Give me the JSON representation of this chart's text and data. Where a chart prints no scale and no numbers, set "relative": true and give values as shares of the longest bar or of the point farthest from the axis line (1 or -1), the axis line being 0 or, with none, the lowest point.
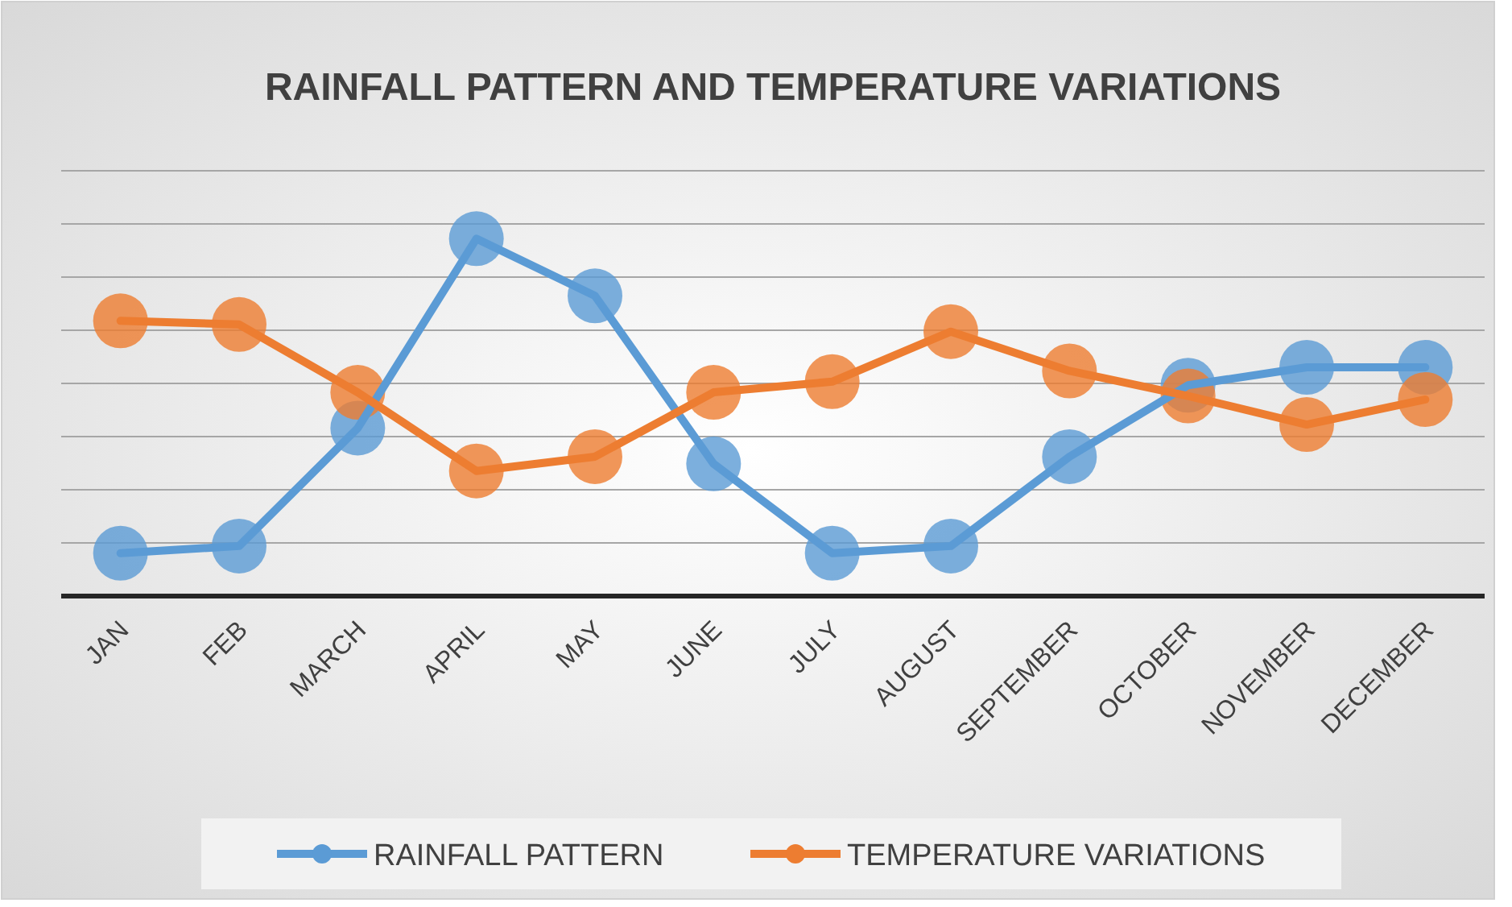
{
  "chart_data": {
    "type": "line",
    "title": "RAINFALL PATTERN AND TEMPERATURE VARIATIONS",
    "categories": [
      "JAN",
      "FEB",
      "MARCH",
      "APRIL",
      "MAY",
      "JUNE",
      "JULY",
      "AUGUST",
      "SEPTEMBER",
      "OCTOBER",
      "NOVEMBER",
      "DECEMBER"
    ],
    "relative": true,
    "grid": true,
    "legend": "bottom",
    "marker": "circle",
    "line_style": "solid",
    "series": [
      {
        "name": "RAINFALL PATTERN",
        "color": "#5b9bd5",
        "values": [
          0.12,
          0.14,
          0.47,
          1,
          0.84,
          0.37,
          0.12,
          0.14,
          0.39,
          0.59,
          0.64,
          0.64
        ]
      },
      {
        "name": "TEMPERATURE VARIATIONS",
        "color": "#ed7d31",
        "values": [
          0.77,
          0.76,
          0.57,
          0.35,
          0.39,
          0.57,
          0.6,
          0.74,
          0.63,
          0.56,
          0.48,
          0.55
        ]
      }
    ]
  }
}
